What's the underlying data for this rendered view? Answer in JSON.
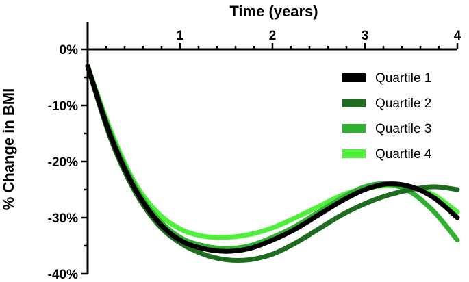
{
  "chart_data": {
    "type": "line",
    "title": "",
    "xlabel": "Time (years)",
    "ylabel": "%  Change in BMI",
    "xlim": [
      0,
      4
    ],
    "ylim": [
      -40,
      0
    ],
    "x_ticks": [
      "1",
      "2",
      "3",
      "4"
    ],
    "y_ticks": [
      "0%",
      "-10%",
      "-20%",
      "-30%",
      "-40%"
    ],
    "x_axis_position": "top",
    "grid": false,
    "legend_position": "right",
    "series": [
      {
        "name": "Quartile 1",
        "color": "#000000",
        "x": [
          0,
          0.25,
          0.5,
          0.75,
          1.0,
          1.25,
          1.5,
          1.75,
          2.0,
          2.25,
          2.5,
          2.75,
          3.0,
          3.25,
          3.5,
          3.75,
          4.0
        ],
        "y": [
          -3,
          -15.5,
          -24.5,
          -30.5,
          -34,
          -35.5,
          -36,
          -35.5,
          -34,
          -32,
          -29.5,
          -27,
          -25,
          -24,
          -24.5,
          -26.5,
          -30
        ]
      },
      {
        "name": "Quartile 2",
        "color": "#1f6b1f",
        "x": [
          0,
          0.25,
          0.5,
          0.75,
          1.0,
          1.25,
          1.5,
          1.75,
          2.0,
          2.25,
          2.5,
          2.75,
          3.0,
          3.25,
          3.5,
          3.75,
          4.0
        ],
        "y": [
          -3,
          -16,
          -25,
          -31,
          -34.5,
          -36.5,
          -37.5,
          -37.5,
          -36.5,
          -34.5,
          -32,
          -29.5,
          -27.5,
          -26,
          -25,
          -24.5,
          -25
        ]
      },
      {
        "name": "Quartile 3",
        "color": "#2fb02f",
        "x": [
          0,
          0.25,
          0.5,
          0.75,
          1.0,
          1.25,
          1.5,
          1.75,
          2.0,
          2.25,
          2.5,
          2.75,
          3.0,
          3.25,
          3.5,
          3.75,
          4.0
        ],
        "y": [
          -3,
          -15,
          -24,
          -30,
          -33.5,
          -35,
          -35.5,
          -35,
          -33.5,
          -31.5,
          -29,
          -26.5,
          -24.5,
          -24,
          -25.5,
          -29,
          -34
        ]
      },
      {
        "name": "Quartile 4",
        "color": "#4ef03c",
        "x": [
          0,
          0.25,
          0.5,
          0.75,
          1.0,
          1.25,
          1.5,
          1.75,
          2.0,
          2.25,
          2.5,
          2.75,
          3.0,
          3.25,
          3.5,
          3.75,
          4.0
        ],
        "y": [
          -3,
          -14.5,
          -23.5,
          -29,
          -32,
          -33.3,
          -33.5,
          -33,
          -31.8,
          -30,
          -28,
          -26,
          -24.8,
          -24.3,
          -24.5,
          -26,
          -29
        ]
      }
    ]
  }
}
